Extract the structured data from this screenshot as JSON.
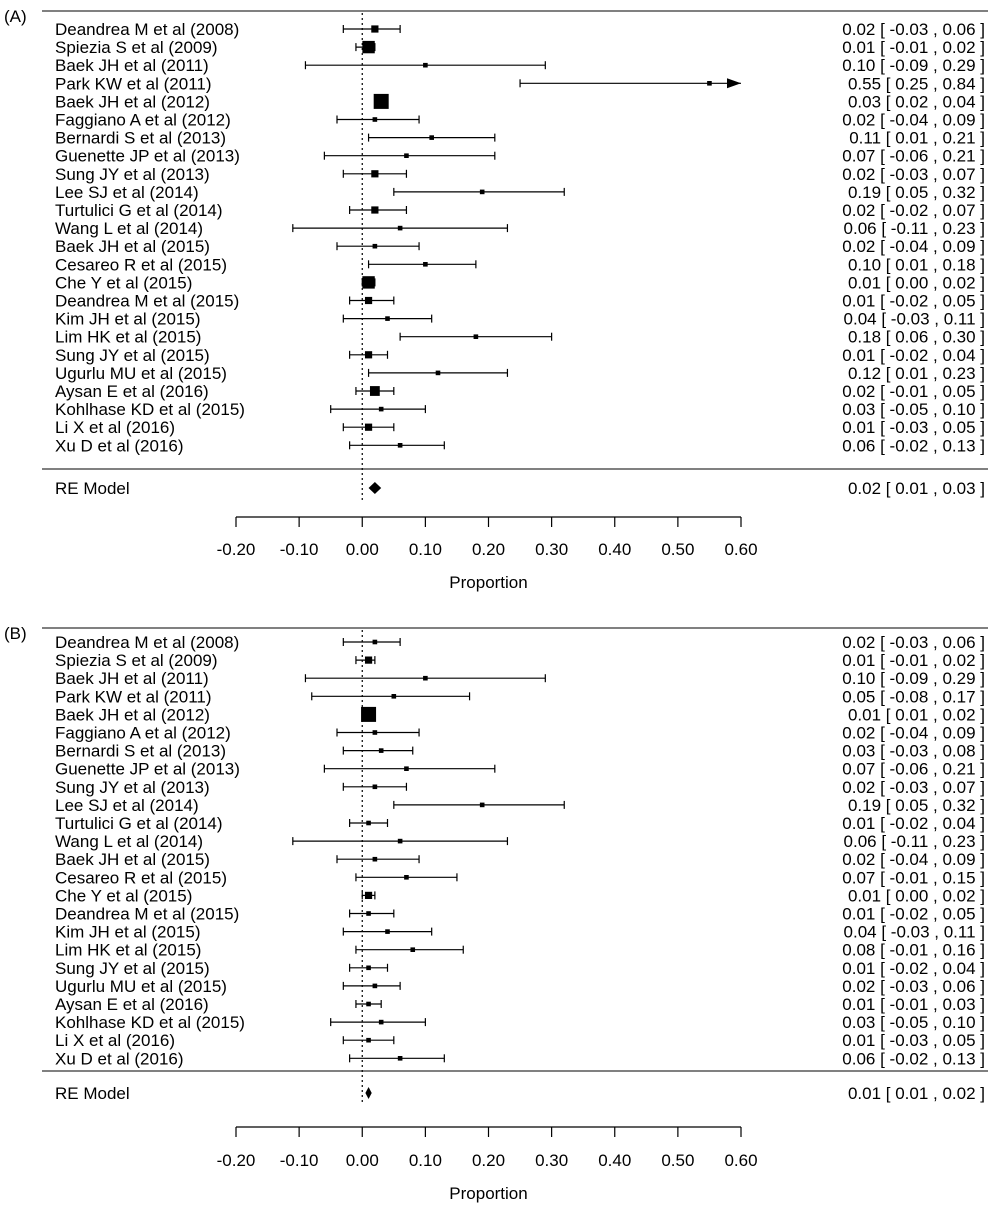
{
  "chart_data": [
    {
      "type": "forest",
      "panel_label": "(A)",
      "xlabel": "Proportion",
      "xlim": [
        -0.2,
        0.6
      ],
      "ticks": [
        -0.2,
        -0.1,
        0.0,
        0.1,
        0.2,
        0.3,
        0.4,
        0.5,
        0.6
      ],
      "tick_labels": [
        "-0.20",
        "-0.10",
        "0.00",
        "0.10",
        "0.20",
        "0.30",
        "0.40",
        "0.50",
        "0.60"
      ],
      "reference_line": 0,
      "studies": [
        {
          "label": "Deandrea M et al (2008)",
          "est": 0.02,
          "lo": -0.03,
          "hi": 0.06,
          "text": "0.02 [ -0.03 , 0.06 ]",
          "weight": 2
        },
        {
          "label": "Spiezia S et al (2009)",
          "est": 0.01,
          "lo": -0.01,
          "hi": 0.02,
          "text": "0.01 [ -0.01 , 0.02 ]",
          "weight": 4
        },
        {
          "label": "Baek JH et al (2011)",
          "est": 0.1,
          "lo": -0.09,
          "hi": 0.29,
          "text": "0.10 [ -0.09 , 0.29 ]",
          "weight": 1
        },
        {
          "label": "Park KW et al (2011)",
          "est": 0.55,
          "lo": 0.25,
          "hi": 0.84,
          "text": "0.55 [ 0.25 , 0.84 ]",
          "weight": 1
        },
        {
          "label": "Baek JH et al (2012)",
          "est": 0.03,
          "lo": 0.02,
          "hi": 0.04,
          "text": "0.03 [ 0.02 , 0.04 ]",
          "weight": 5
        },
        {
          "label": "Faggiano A et al (2012)",
          "est": 0.02,
          "lo": -0.04,
          "hi": 0.09,
          "text": "0.02 [ -0.04 , 0.09 ]",
          "weight": 1
        },
        {
          "label": "Bernardi S et al (2013)",
          "est": 0.11,
          "lo": 0.01,
          "hi": 0.21,
          "text": "0.11 [ 0.01 , 0.21 ]",
          "weight": 1
        },
        {
          "label": "Guenette JP et al (2013)",
          "est": 0.07,
          "lo": -0.06,
          "hi": 0.21,
          "text": "0.07 [ -0.06 , 0.21 ]",
          "weight": 1
        },
        {
          "label": "Sung JY et al (2013)",
          "est": 0.02,
          "lo": -0.03,
          "hi": 0.07,
          "text": "0.02 [ -0.03 , 0.07 ]",
          "weight": 2
        },
        {
          "label": "Lee SJ et al (2014)",
          "est": 0.19,
          "lo": 0.05,
          "hi": 0.32,
          "text": "0.19 [ 0.05 , 0.32 ]",
          "weight": 1
        },
        {
          "label": "Turtulici G et al (2014)",
          "est": 0.02,
          "lo": -0.02,
          "hi": 0.07,
          "text": "0.02 [ -0.02 , 0.07 ]",
          "weight": 2
        },
        {
          "label": "Wang L et al (2014)",
          "est": 0.06,
          "lo": -0.11,
          "hi": 0.23,
          "text": "0.06 [ -0.11 , 0.23 ]",
          "weight": 1
        },
        {
          "label": "Baek JH et al (2015)",
          "est": 0.02,
          "lo": -0.04,
          "hi": 0.09,
          "text": "0.02 [ -0.04 , 0.09 ]",
          "weight": 1
        },
        {
          "label": "Cesareo R et al (2015)",
          "est": 0.1,
          "lo": 0.01,
          "hi": 0.18,
          "text": "0.10 [ 0.01 , 0.18 ]",
          "weight": 1
        },
        {
          "label": "Che Y et al (2015)",
          "est": 0.01,
          "lo": 0.0,
          "hi": 0.02,
          "text": "0.01 [ 0.00 , 0.02 ]",
          "weight": 4
        },
        {
          "label": "Deandrea M et al (2015)",
          "est": 0.01,
          "lo": -0.02,
          "hi": 0.05,
          "text": "0.01 [ -0.02 , 0.05 ]",
          "weight": 2
        },
        {
          "label": "Kim JH et al (2015)",
          "est": 0.04,
          "lo": -0.03,
          "hi": 0.11,
          "text": "0.04 [ -0.03 , 0.11 ]",
          "weight": 1
        },
        {
          "label": "Lim HK et al (2015)",
          "est": 0.18,
          "lo": 0.06,
          "hi": 0.3,
          "text": "0.18 [ 0.06 , 0.30 ]",
          "weight": 1
        },
        {
          "label": "Sung JY et al (2015)",
          "est": 0.01,
          "lo": -0.02,
          "hi": 0.04,
          "text": "0.01 [ -0.02 , 0.04 ]",
          "weight": 2
        },
        {
          "label": "Ugurlu MU et al (2015)",
          "est": 0.12,
          "lo": 0.01,
          "hi": 0.23,
          "text": "0.12 [ 0.01 , 0.23 ]",
          "weight": 1
        },
        {
          "label": "Aysan E et al (2016)",
          "est": 0.02,
          "lo": -0.01,
          "hi": 0.05,
          "text": "0.02 [ -0.01 , 0.05 ]",
          "weight": 3
        },
        {
          "label": "Kohlhase KD et al (2015)",
          "est": 0.03,
          "lo": -0.05,
          "hi": 0.1,
          "text": "0.03 [ -0.05 , 0.10 ]",
          "weight": 1
        },
        {
          "label": "Li X et al (2016)",
          "est": 0.01,
          "lo": -0.03,
          "hi": 0.05,
          "text": "0.01 [ -0.03 , 0.05 ]",
          "weight": 2
        },
        {
          "label": "Xu D et al (2016)",
          "est": 0.06,
          "lo": -0.02,
          "hi": 0.13,
          "text": "0.06 [ -0.02 , 0.13 ]",
          "weight": 1
        }
      ],
      "summary": {
        "label": "RE Model",
        "est": 0.02,
        "lo": 0.01,
        "hi": 0.03,
        "text": "0.02 [ 0.01 , 0.03 ]"
      }
    },
    {
      "type": "forest",
      "panel_label": "(B)",
      "xlabel": "Proportion",
      "xlim": [
        -0.2,
        0.6
      ],
      "ticks": [
        -0.2,
        -0.1,
        0.0,
        0.1,
        0.2,
        0.3,
        0.4,
        0.5,
        0.6
      ],
      "tick_labels": [
        "-0.20",
        "-0.10",
        "0.00",
        "0.10",
        "0.20",
        "0.30",
        "0.40",
        "0.50",
        "0.60"
      ],
      "reference_line": 0,
      "studies": [
        {
          "label": "Deandrea M et al (2008)",
          "est": 0.02,
          "lo": -0.03,
          "hi": 0.06,
          "text": "0.02 [ -0.03 , 0.06 ]",
          "weight": 1
        },
        {
          "label": "Spiezia S et al (2009)",
          "est": 0.01,
          "lo": -0.01,
          "hi": 0.02,
          "text": "0.01 [ -0.01 , 0.02 ]",
          "weight": 2
        },
        {
          "label": "Baek JH et al (2011)",
          "est": 0.1,
          "lo": -0.09,
          "hi": 0.29,
          "text": "0.10 [ -0.09 , 0.29 ]",
          "weight": 1
        },
        {
          "label": "Park KW et al (2011)",
          "est": 0.05,
          "lo": -0.08,
          "hi": 0.17,
          "text": "0.05 [ -0.08 , 0.17 ]",
          "weight": 1
        },
        {
          "label": "Baek JH et al (2012)",
          "est": 0.01,
          "lo": 0.01,
          "hi": 0.02,
          "text": "0.01 [ 0.01 , 0.02 ]",
          "weight": 5
        },
        {
          "label": "Faggiano A et al (2012)",
          "est": 0.02,
          "lo": -0.04,
          "hi": 0.09,
          "text": "0.02 [ -0.04 , 0.09 ]",
          "weight": 1
        },
        {
          "label": "Bernardi S et al (2013)",
          "est": 0.03,
          "lo": -0.03,
          "hi": 0.08,
          "text": "0.03 [ -0.03 , 0.08 ]",
          "weight": 1
        },
        {
          "label": "Guenette JP et al (2013)",
          "est": 0.07,
          "lo": -0.06,
          "hi": 0.21,
          "text": "0.07 [ -0.06 , 0.21 ]",
          "weight": 1
        },
        {
          "label": "Sung JY et al (2013)",
          "est": 0.02,
          "lo": -0.03,
          "hi": 0.07,
          "text": "0.02 [ -0.03 , 0.07 ]",
          "weight": 1
        },
        {
          "label": "Lee SJ et al (2014)",
          "est": 0.19,
          "lo": 0.05,
          "hi": 0.32,
          "text": "0.19 [ 0.05 , 0.32 ]",
          "weight": 1
        },
        {
          "label": "Turtulici G et al (2014)",
          "est": 0.01,
          "lo": -0.02,
          "hi": 0.04,
          "text": "0.01 [ -0.02 , 0.04 ]",
          "weight": 1
        },
        {
          "label": "Wang L et al (2014)",
          "est": 0.06,
          "lo": -0.11,
          "hi": 0.23,
          "text": "0.06 [ -0.11 , 0.23 ]",
          "weight": 1
        },
        {
          "label": "Baek JH et al (2015)",
          "est": 0.02,
          "lo": -0.04,
          "hi": 0.09,
          "text": "0.02 [ -0.04 , 0.09 ]",
          "weight": 1
        },
        {
          "label": "Cesareo R et al (2015)",
          "est": 0.07,
          "lo": -0.01,
          "hi": 0.15,
          "text": "0.07 [ -0.01 , 0.15 ]",
          "weight": 1
        },
        {
          "label": "Che Y et al (2015)",
          "est": 0.01,
          "lo": 0.0,
          "hi": 0.02,
          "text": "0.01 [ 0.00 , 0.02 ]",
          "weight": 2
        },
        {
          "label": "Deandrea M et al (2015)",
          "est": 0.01,
          "lo": -0.02,
          "hi": 0.05,
          "text": "0.01 [ -0.02 , 0.05 ]",
          "weight": 1
        },
        {
          "label": "Kim JH et al (2015)",
          "est": 0.04,
          "lo": -0.03,
          "hi": 0.11,
          "text": "0.04 [ -0.03 , 0.11 ]",
          "weight": 1
        },
        {
          "label": "Lim HK et al (2015)",
          "est": 0.08,
          "lo": -0.01,
          "hi": 0.16,
          "text": "0.08 [ -0.01 , 0.16 ]",
          "weight": 1
        },
        {
          "label": "Sung JY et al (2015)",
          "est": 0.01,
          "lo": -0.02,
          "hi": 0.04,
          "text": "0.01 [ -0.02 , 0.04 ]",
          "weight": 1
        },
        {
          "label": "Ugurlu MU et al (2015)",
          "est": 0.02,
          "lo": -0.03,
          "hi": 0.06,
          "text": "0.02 [ -0.03 , 0.06 ]",
          "weight": 1
        },
        {
          "label": "Aysan E et al (2016)",
          "est": 0.01,
          "lo": -0.01,
          "hi": 0.03,
          "text": "0.01 [ -0.01 , 0.03 ]",
          "weight": 1
        },
        {
          "label": "Kohlhase KD et al (2015)",
          "est": 0.03,
          "lo": -0.05,
          "hi": 0.1,
          "text": "0.03 [ -0.05 , 0.10 ]",
          "weight": 1
        },
        {
          "label": "Li X et al (2016)",
          "est": 0.01,
          "lo": -0.03,
          "hi": 0.05,
          "text": "0.01 [ -0.03 , 0.05 ]",
          "weight": 1
        },
        {
          "label": "Xu D et al (2016)",
          "est": 0.06,
          "lo": -0.02,
          "hi": 0.13,
          "text": "0.06 [ -0.02 , 0.13 ]",
          "weight": 1
        }
      ],
      "summary": {
        "label": "RE Model",
        "est": 0.01,
        "lo": 0.01,
        "hi": 0.02,
        "text": "0.01 [ 0.01 , 0.02 ]"
      }
    }
  ]
}
